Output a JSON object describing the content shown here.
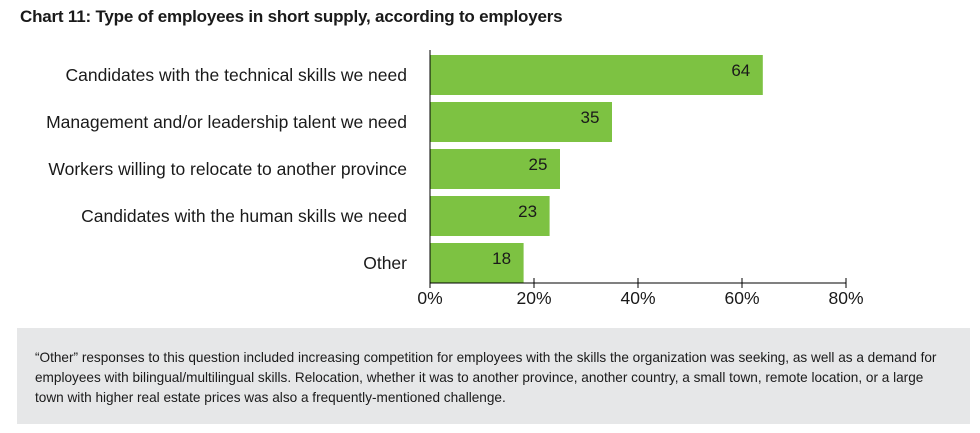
{
  "chart_data": {
    "type": "bar",
    "orientation": "horizontal",
    "title": "Chart 11: Type of employees in short supply, according to employers",
    "categories": [
      "Candidates with the technical skills we need",
      "Management and/or leadership talent we need",
      "Workers willing to relocate to another province",
      "Candidates with the human skills we need",
      "Other"
    ],
    "values": [
      64,
      35,
      25,
      23,
      18
    ],
    "xlim": [
      0,
      80
    ],
    "x_ticks": [
      "0%",
      "20%",
      "40%",
      "60%",
      "80%"
    ],
    "grid": false,
    "bar_color": "#7dc242"
  },
  "note": {
    "text": "“Other” responses to this question included increasing competition for employees with the skills the organization was seeking, as well as a demand for employees with bilingual/multilingual skills. Relocation, whether it was to another province, another country, a small town, remote location, or a large town with higher real estate prices was also a frequently-mentioned challenge."
  }
}
